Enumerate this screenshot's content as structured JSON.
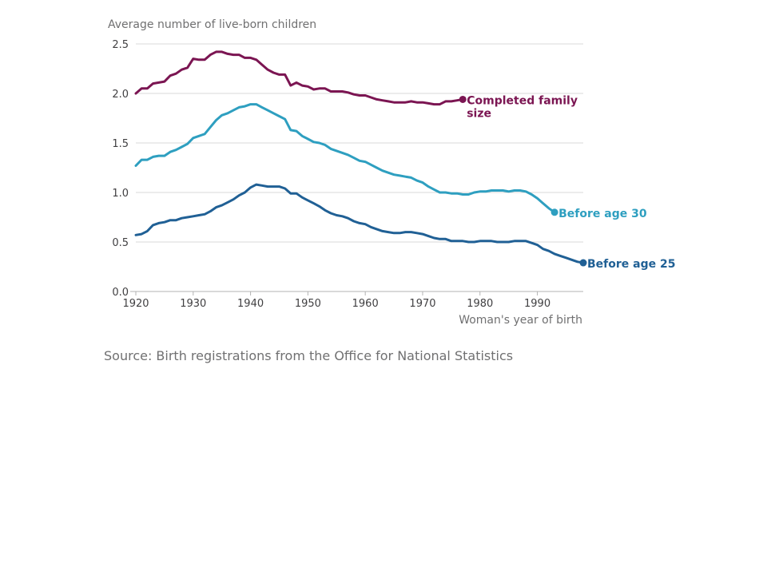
{
  "chart_data": {
    "type": "line",
    "ylabel": "Average number of live-born children",
    "xlabel": "Woman's year of birth",
    "source": "Source: Birth registrations from the Office for National Statistics",
    "xlim": [
      1920,
      1998
    ],
    "ylim": [
      0,
      2.5
    ],
    "x_ticks": [
      1920,
      1930,
      1940,
      1950,
      1960,
      1970,
      1980,
      1990
    ],
    "y_ticks": [
      "0.0",
      "0.5",
      "1.0",
      "1.5",
      "2.0",
      "2.5"
    ],
    "grid": true,
    "series": [
      {
        "name": "Completed family size",
        "label_lines": [
          "Completed family",
          "size"
        ],
        "color": "#7b1552",
        "x": [
          1920,
          1921,
          1922,
          1923,
          1924,
          1925,
          1926,
          1927,
          1928,
          1929,
          1930,
          1931,
          1932,
          1933,
          1934,
          1935,
          1936,
          1937,
          1938,
          1939,
          1940,
          1941,
          1942,
          1943,
          1944,
          1945,
          1946,
          1947,
          1948,
          1949,
          1950,
          1951,
          1952,
          1953,
          1954,
          1955,
          1956,
          1957,
          1958,
          1959,
          1960,
          1961,
          1962,
          1963,
          1964,
          1965,
          1966,
          1967,
          1968,
          1969,
          1970,
          1971,
          1972,
          1973,
          1974,
          1975,
          1976,
          1977
        ],
        "values": [
          2.0,
          2.05,
          2.05,
          2.1,
          2.11,
          2.12,
          2.18,
          2.2,
          2.24,
          2.26,
          2.35,
          2.34,
          2.34,
          2.39,
          2.42,
          2.42,
          2.4,
          2.39,
          2.39,
          2.36,
          2.36,
          2.34,
          2.29,
          2.24,
          2.21,
          2.19,
          2.19,
          2.08,
          2.11,
          2.08,
          2.07,
          2.04,
          2.05,
          2.05,
          2.02,
          2.02,
          2.02,
          2.01,
          1.99,
          1.98,
          1.98,
          1.96,
          1.94,
          1.93,
          1.92,
          1.91,
          1.91,
          1.91,
          1.92,
          1.91,
          1.91,
          1.9,
          1.89,
          1.89,
          1.92,
          1.92,
          1.93,
          1.94
        ]
      },
      {
        "name": "Before age 30",
        "label_lines": [
          "Before age 30"
        ],
        "color": "#2e9fc0",
        "x": [
          1920,
          1921,
          1922,
          1923,
          1924,
          1925,
          1926,
          1927,
          1928,
          1929,
          1930,
          1931,
          1932,
          1933,
          1934,
          1935,
          1936,
          1937,
          1938,
          1939,
          1940,
          1941,
          1942,
          1943,
          1944,
          1945,
          1946,
          1947,
          1948,
          1949,
          1950,
          1951,
          1952,
          1953,
          1954,
          1955,
          1956,
          1957,
          1958,
          1959,
          1960,
          1961,
          1962,
          1963,
          1964,
          1965,
          1966,
          1967,
          1968,
          1969,
          1970,
          1971,
          1972,
          1973,
          1974,
          1975,
          1976,
          1977,
          1978,
          1979,
          1980,
          1981,
          1982,
          1983,
          1984,
          1985,
          1986,
          1987,
          1988,
          1989,
          1990,
          1991,
          1992,
          1993
        ],
        "values": [
          1.27,
          1.33,
          1.33,
          1.36,
          1.37,
          1.37,
          1.41,
          1.43,
          1.46,
          1.49,
          1.55,
          1.57,
          1.59,
          1.66,
          1.73,
          1.78,
          1.8,
          1.83,
          1.86,
          1.87,
          1.89,
          1.89,
          1.86,
          1.83,
          1.8,
          1.77,
          1.74,
          1.63,
          1.62,
          1.57,
          1.54,
          1.51,
          1.5,
          1.48,
          1.44,
          1.42,
          1.4,
          1.38,
          1.35,
          1.32,
          1.31,
          1.28,
          1.25,
          1.22,
          1.2,
          1.18,
          1.17,
          1.16,
          1.15,
          1.12,
          1.1,
          1.06,
          1.03,
          1.0,
          1.0,
          0.99,
          0.99,
          0.98,
          0.98,
          1.0,
          1.01,
          1.01,
          1.02,
          1.02,
          1.02,
          1.01,
          1.02,
          1.02,
          1.01,
          0.98,
          0.94,
          0.89,
          0.84,
          0.8
        ]
      },
      {
        "name": "Before age 25",
        "label_lines": [
          "Before age 25"
        ],
        "color": "#206095",
        "x": [
          1920,
          1921,
          1922,
          1923,
          1924,
          1925,
          1926,
          1927,
          1928,
          1929,
          1930,
          1931,
          1932,
          1933,
          1934,
          1935,
          1936,
          1937,
          1938,
          1939,
          1940,
          1941,
          1942,
          1943,
          1944,
          1945,
          1946,
          1947,
          1948,
          1949,
          1950,
          1951,
          1952,
          1953,
          1954,
          1955,
          1956,
          1957,
          1958,
          1959,
          1960,
          1961,
          1962,
          1963,
          1964,
          1965,
          1966,
          1967,
          1968,
          1969,
          1970,
          1971,
          1972,
          1973,
          1974,
          1975,
          1976,
          1977,
          1978,
          1979,
          1980,
          1981,
          1982,
          1983,
          1984,
          1985,
          1986,
          1987,
          1988,
          1989,
          1990,
          1991,
          1992,
          1993,
          1994,
          1995,
          1996,
          1997,
          1998
        ],
        "values": [
          0.57,
          0.58,
          0.61,
          0.67,
          0.69,
          0.7,
          0.72,
          0.72,
          0.74,
          0.75,
          0.76,
          0.77,
          0.78,
          0.81,
          0.85,
          0.87,
          0.9,
          0.93,
          0.97,
          1.0,
          1.05,
          1.08,
          1.07,
          1.06,
          1.06,
          1.06,
          1.04,
          0.99,
          0.99,
          0.95,
          0.92,
          0.89,
          0.86,
          0.82,
          0.79,
          0.77,
          0.76,
          0.74,
          0.71,
          0.69,
          0.68,
          0.65,
          0.63,
          0.61,
          0.6,
          0.59,
          0.59,
          0.6,
          0.6,
          0.59,
          0.58,
          0.56,
          0.54,
          0.53,
          0.53,
          0.51,
          0.51,
          0.51,
          0.5,
          0.5,
          0.51,
          0.51,
          0.51,
          0.5,
          0.5,
          0.5,
          0.51,
          0.51,
          0.51,
          0.49,
          0.47,
          0.43,
          0.41,
          0.38,
          0.36,
          0.34,
          0.32,
          0.3,
          0.29
        ]
      }
    ]
  }
}
